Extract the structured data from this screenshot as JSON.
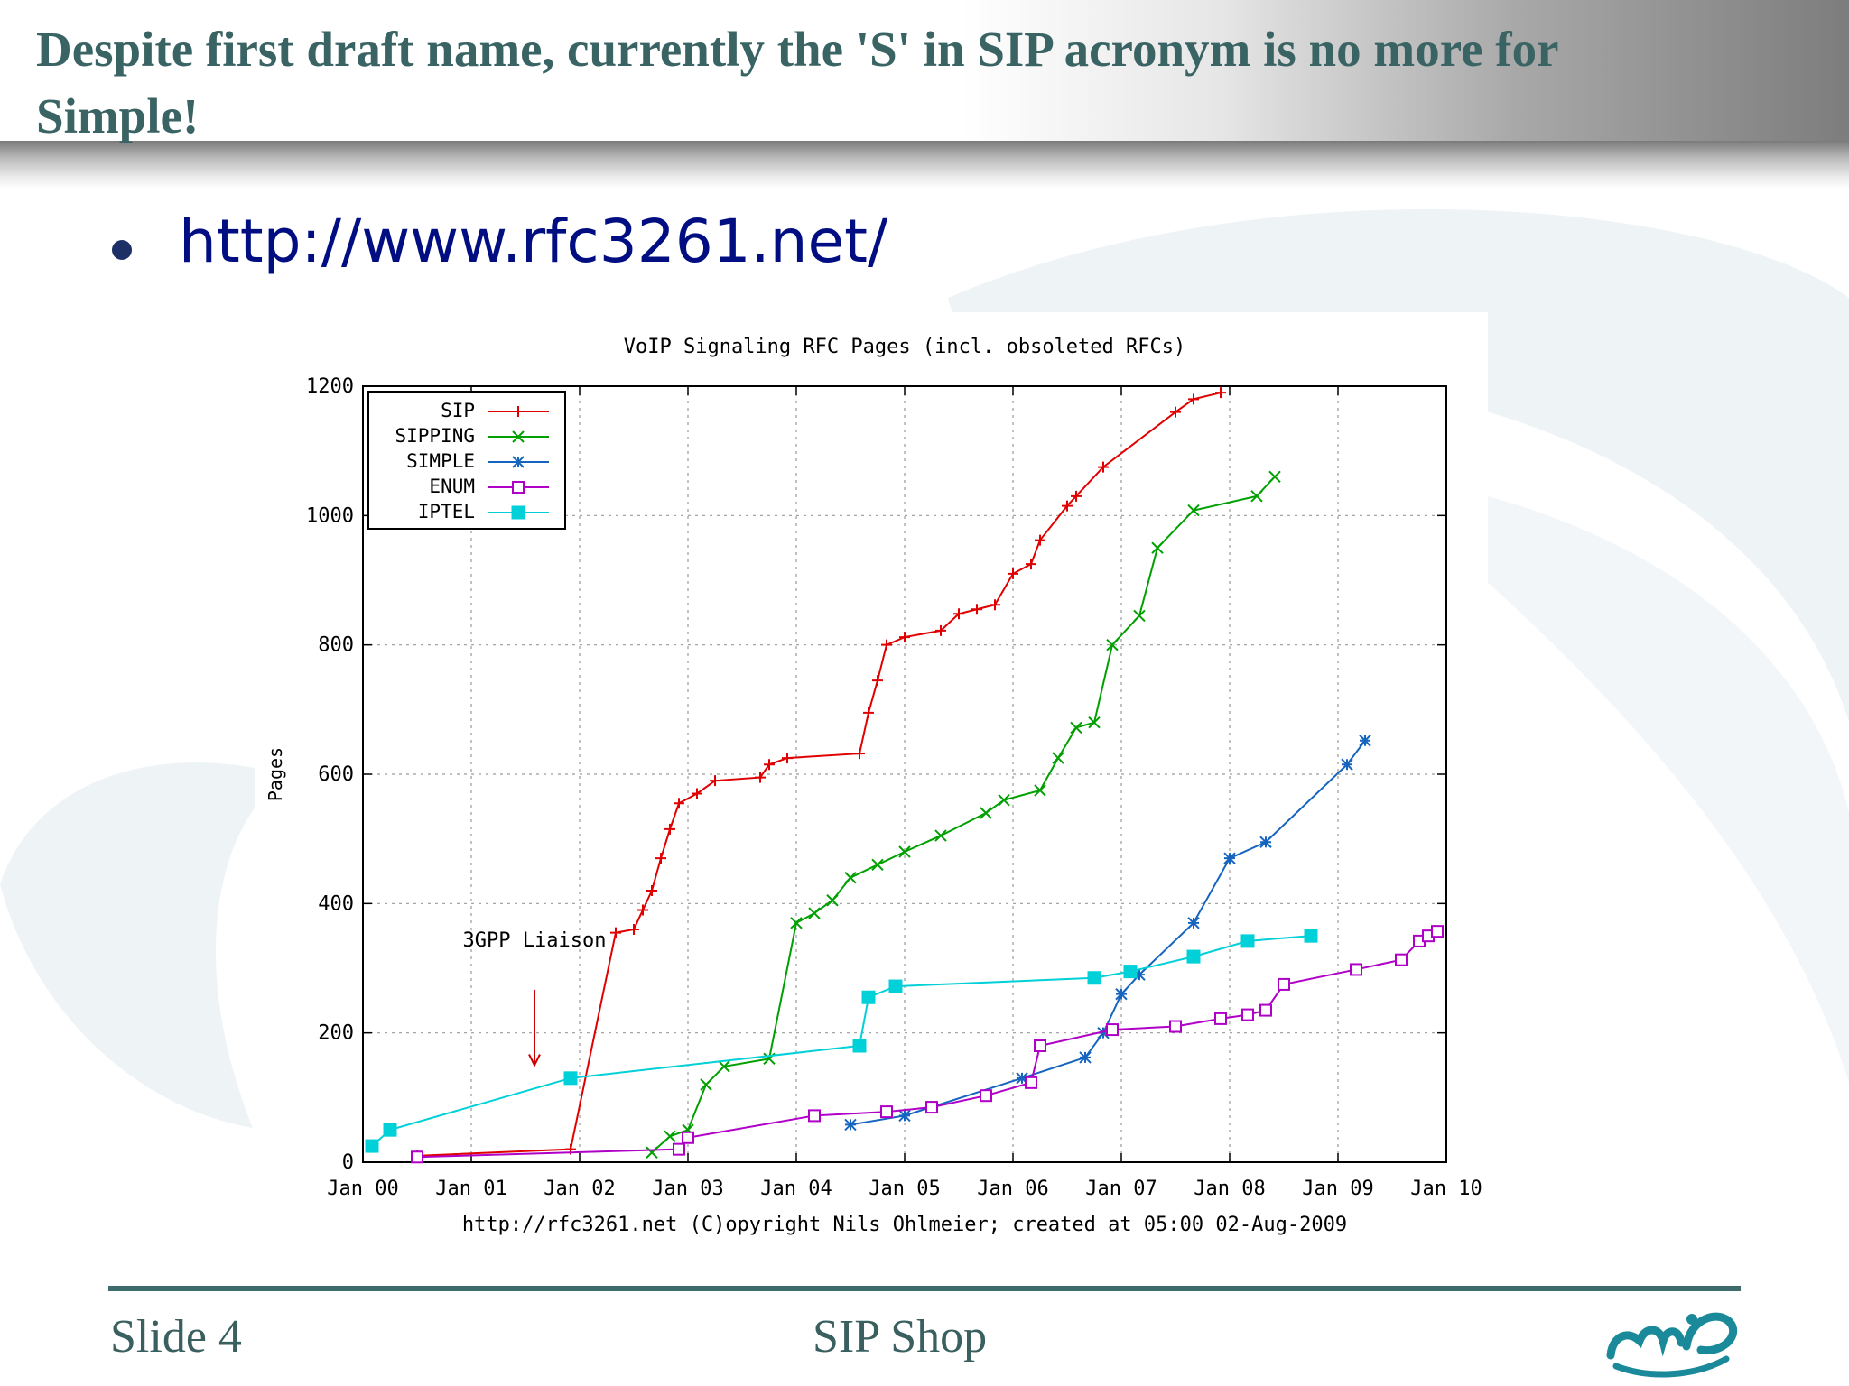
{
  "slide": {
    "title": "Despite first draft name, currently the 'S' in SIP acronym is no more for Simple!",
    "link": "http://www.rfc3261.net/",
    "footer_left": "Slide 4",
    "footer_center": "SIP Shop"
  },
  "colors": {
    "title": "#3a6363",
    "link": "#000e82",
    "footer_rule": "#3e6c6c"
  },
  "icons": {
    "bullet": "bullet-dot-icon",
    "logo": "mip-logo-icon"
  },
  "chart_data": {
    "type": "line",
    "title": "VoIP Signaling RFC Pages (incl. obsoleted RFCs)",
    "xlabel": "http://rfc3261.net (C)opyright Nils Ohlmeier; created at 05:00 02-Aug-2009",
    "ylabel": "Pages",
    "x_ticks": [
      "Jan 00",
      "Jan 01",
      "Jan 02",
      "Jan 03",
      "Jan 04",
      "Jan 05",
      "Jan 06",
      "Jan 07",
      "Jan 08",
      "Jan 09",
      "Jan 10"
    ],
    "y_ticks": [
      0,
      200,
      400,
      600,
      800,
      1000,
      1200
    ],
    "xlim": [
      "2000-01",
      "2010-01"
    ],
    "ylim": [
      0,
      1200
    ],
    "grid": true,
    "legend_position": "top-left",
    "annotation": {
      "text": "3GPP Liaison",
      "arrow_x": "2001-08",
      "arrow_from_y": 250,
      "arrow_to_y": 150
    },
    "series": [
      {
        "name": "SIP",
        "color": "#e00000",
        "marker": "plus",
        "points": [
          [
            "2000-07",
            10
          ],
          [
            "2001-12",
            20
          ],
          [
            "2002-05",
            355
          ],
          [
            "2002-07",
            360
          ],
          [
            "2002-08",
            390
          ],
          [
            "2002-09",
            420
          ],
          [
            "2002-10",
            470
          ],
          [
            "2002-11",
            515
          ],
          [
            "2002-12",
            555
          ],
          [
            "2003-02",
            570
          ],
          [
            "2003-04",
            590
          ],
          [
            "2003-09",
            595
          ],
          [
            "2003-10",
            615
          ],
          [
            "2003-12",
            625
          ],
          [
            "2004-08",
            632
          ],
          [
            "2004-09",
            695
          ],
          [
            "2004-10",
            745
          ],
          [
            "2004-11",
            800
          ],
          [
            "2005-01",
            812
          ],
          [
            "2005-05",
            822
          ],
          [
            "2005-07",
            848
          ],
          [
            "2005-09",
            855
          ],
          [
            "2005-11",
            862
          ],
          [
            "2006-01",
            910
          ],
          [
            "2006-03",
            925
          ],
          [
            "2006-04",
            962
          ],
          [
            "2006-07",
            1015
          ],
          [
            "2006-08",
            1030
          ],
          [
            "2006-11",
            1075
          ],
          [
            "2007-07",
            1160
          ],
          [
            "2007-09",
            1180
          ],
          [
            "2007-12",
            1190
          ]
        ]
      },
      {
        "name": "SIPPING",
        "color": "#00a000",
        "marker": "x",
        "points": [
          [
            "2002-09",
            15
          ],
          [
            "2002-11",
            40
          ],
          [
            "2003-01",
            50
          ],
          [
            "2003-03",
            120
          ],
          [
            "2003-05",
            148
          ],
          [
            "2003-10",
            160
          ],
          [
            "2004-01",
            370
          ],
          [
            "2004-03",
            385
          ],
          [
            "2004-05",
            405
          ],
          [
            "2004-07",
            440
          ],
          [
            "2004-10",
            460
          ],
          [
            "2005-01",
            480
          ],
          [
            "2005-05",
            505
          ],
          [
            "2005-10",
            540
          ],
          [
            "2005-12",
            560
          ],
          [
            "2006-04",
            575
          ],
          [
            "2006-06",
            625
          ],
          [
            "2006-08",
            672
          ],
          [
            "2006-10",
            680
          ],
          [
            "2006-12",
            800
          ],
          [
            "2007-03",
            845
          ],
          [
            "2007-05",
            950
          ],
          [
            "2007-09",
            1008
          ],
          [
            "2008-04",
            1030
          ],
          [
            "2008-06",
            1060
          ]
        ]
      },
      {
        "name": "SIMPLE",
        "color": "#1565c0",
        "marker": "star",
        "points": [
          [
            "2004-07",
            58
          ],
          [
            "2005-01",
            72
          ],
          [
            "2006-02",
            130
          ],
          [
            "2006-09",
            162
          ],
          [
            "2006-11",
            200
          ],
          [
            "2007-01",
            260
          ],
          [
            "2007-03",
            290
          ],
          [
            "2007-09",
            370
          ],
          [
            "2008-01",
            470
          ],
          [
            "2008-05",
            495
          ],
          [
            "2009-02",
            615
          ],
          [
            "2009-04",
            652
          ]
        ]
      },
      {
        "name": "ENUM",
        "color": "#b000c8",
        "marker": "square-open",
        "points": [
          [
            "2000-07",
            8
          ],
          [
            "2002-12",
            20
          ],
          [
            "2003-01",
            38
          ],
          [
            "2004-03",
            72
          ],
          [
            "2004-11",
            78
          ],
          [
            "2005-04",
            85
          ],
          [
            "2005-10",
            103
          ],
          [
            "2006-03",
            123
          ],
          [
            "2006-04",
            180
          ],
          [
            "2006-12",
            205
          ],
          [
            "2007-07",
            210
          ],
          [
            "2007-12",
            222
          ],
          [
            "2008-03",
            228
          ],
          [
            "2008-05",
            235
          ],
          [
            "2008-07",
            275
          ],
          [
            "2009-03",
            298
          ],
          [
            "2009-08",
            313
          ],
          [
            "2009-10",
            342
          ],
          [
            "2009-11",
            350
          ],
          [
            "2009-12",
            357
          ]
        ]
      },
      {
        "name": "IPTEL",
        "color": "#00d0d8",
        "marker": "square-filled",
        "points": [
          [
            "2000-02",
            25
          ],
          [
            "2000-04",
            50
          ],
          [
            "2002-00",
            130
          ],
          [
            "2004-08",
            180
          ],
          [
            "2004-09",
            255
          ],
          [
            "2004-12",
            272
          ],
          [
            "2006-10",
            285
          ],
          [
            "2007-02",
            295
          ],
          [
            "2007-09",
            318
          ],
          [
            "2008-03",
            342
          ],
          [
            "2008-10",
            350
          ]
        ]
      }
    ]
  }
}
